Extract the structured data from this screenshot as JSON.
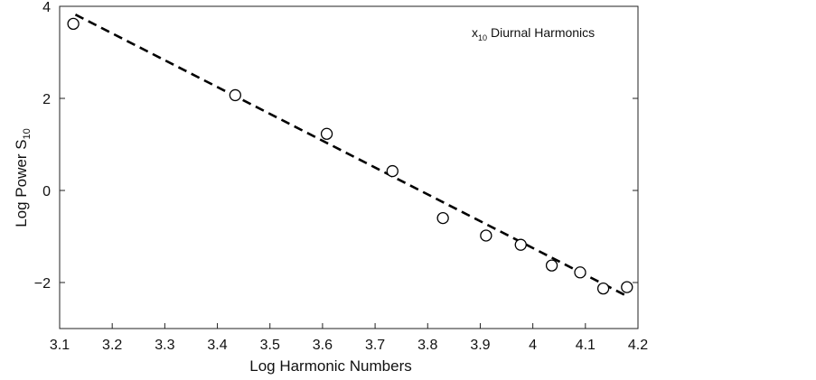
{
  "chart_data": {
    "type": "scatter",
    "title": "",
    "xlabel": "Log Harmonic Numbers",
    "ylabel": "Log Power S",
    "ylabel_subscript": "10",
    "annotation": {
      "prefix": "x",
      "subscript": "10",
      "text": "Diurnal Harmonics",
      "placement": "top-right"
    },
    "xlim": [
      3.1,
      4.2
    ],
    "ylim": [
      -3,
      4
    ],
    "xticks": [
      3.1,
      3.2,
      3.3,
      3.4,
      3.5,
      3.6,
      3.7,
      3.8,
      3.9,
      4,
      4.1,
      4.2
    ],
    "xtick_labels": [
      "3.1",
      "3.2",
      "3.3",
      "3.4",
      "3.5",
      "3.6",
      "3.7",
      "3.8",
      "3.9",
      "4",
      "4.1",
      "4.2"
    ],
    "yticks": [
      -2,
      0,
      2,
      4
    ],
    "ytick_labels": [
      "−2",
      "0",
      "2",
      "4"
    ],
    "grid": false,
    "series": [
      {
        "marker": "open-circle",
        "x": [
          3.126,
          3.434,
          3.608,
          3.733,
          3.829,
          3.911,
          3.977,
          4.036,
          4.09,
          4.134,
          4.179
        ],
        "y": [
          3.62,
          2.07,
          1.23,
          0.42,
          -0.6,
          -0.98,
          -1.18,
          -1.63,
          -1.78,
          -2.13,
          -2.1
        ]
      },
      {
        "line_style": "dashed",
        "color": "#000000",
        "x": [
          3.13,
          4.18
        ],
        "y": [
          3.82,
          -2.3
        ]
      }
    ]
  }
}
